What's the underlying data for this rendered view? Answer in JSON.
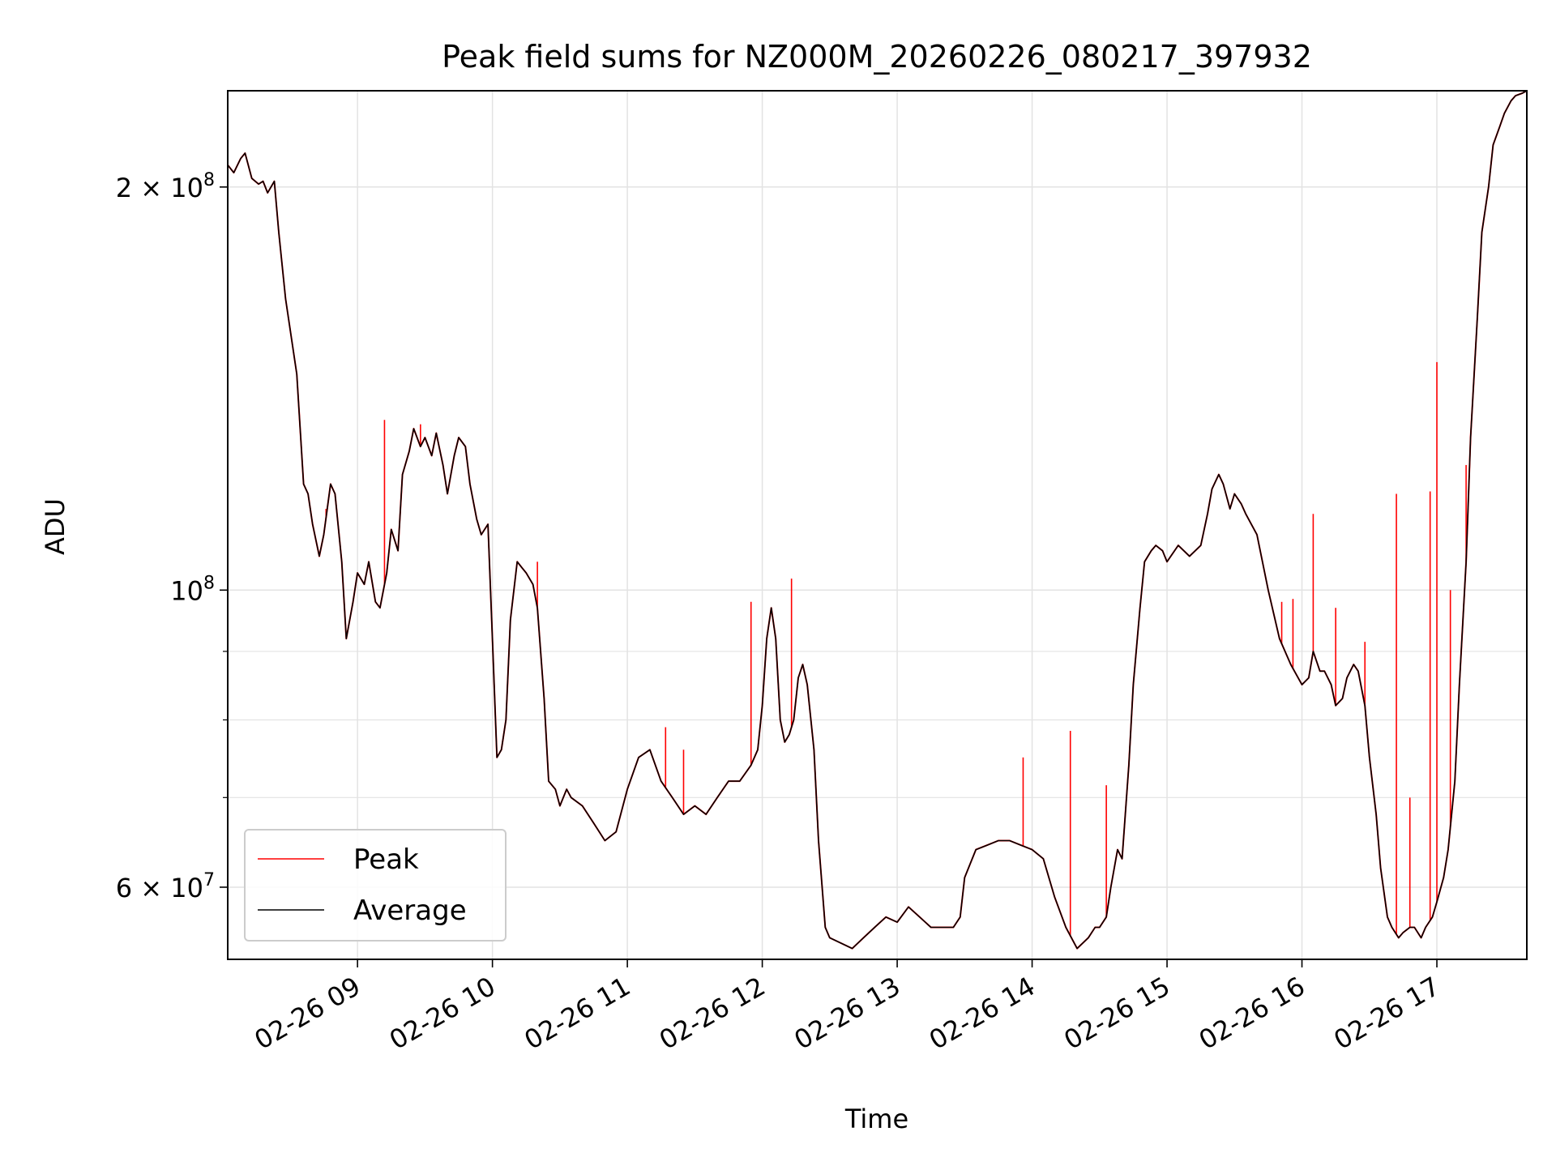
{
  "chart_data": {
    "type": "line",
    "title": "Peak field sums for NZ000M_20260226_080217_397932",
    "xlabel": "Time",
    "ylabel": "ADU",
    "x_is_time": true,
    "xlim": [
      "2026-02-26T08:02:17",
      "2026-02-26T17:40:00"
    ],
    "ylim": [
      53000000,
      236000000
    ],
    "y_scale": "log",
    "grid": true,
    "legend_position": "lower-left",
    "x_ticks": [
      {
        "value": "2026-02-26T09:00",
        "label": "02-26 09"
      },
      {
        "value": "2026-02-26T10:00",
        "label": "02-26 10"
      },
      {
        "value": "2026-02-26T11:00",
        "label": "02-26 11"
      },
      {
        "value": "2026-02-26T12:00",
        "label": "02-26 12"
      },
      {
        "value": "2026-02-26T13:00",
        "label": "02-26 13"
      },
      {
        "value": "2026-02-26T14:00",
        "label": "02-26 14"
      },
      {
        "value": "2026-02-26T15:00",
        "label": "02-26 15"
      },
      {
        "value": "2026-02-26T16:00",
        "label": "02-26 16"
      },
      {
        "value": "2026-02-26T17:00",
        "label": "02-26 17"
      }
    ],
    "y_major_ticks": [
      {
        "value": 60000000,
        "mantissa": "6",
        "exponent": "7"
      },
      {
        "value": 100000000,
        "mantissa": "",
        "exponent": "8"
      },
      {
        "value": 200000000,
        "mantissa": "2",
        "exponent": "8"
      }
    ],
    "y_minor_ticks": [
      70000000,
      80000000,
      90000000
    ],
    "series": [
      {
        "name": "Average",
        "color": "#000000",
        "x": [
          "2026-02-26T08:02",
          "2026-02-26T08:05",
          "2026-02-26T08:08",
          "2026-02-26T08:10",
          "2026-02-26T08:13",
          "2026-02-26T08:16",
          "2026-02-26T08:18",
          "2026-02-26T08:20",
          "2026-02-26T08:23",
          "2026-02-26T08:25",
          "2026-02-26T08:28",
          "2026-02-26T08:33",
          "2026-02-26T08:36",
          "2026-02-26T08:38",
          "2026-02-26T08:40",
          "2026-02-26T08:43",
          "2026-02-26T08:45",
          "2026-02-26T08:48",
          "2026-02-26T08:50",
          "2026-02-26T08:53",
          "2026-02-26T08:55",
          "2026-02-26T08:58",
          "2026-02-26T09:00",
          "2026-02-26T09:03",
          "2026-02-26T09:05",
          "2026-02-26T09:08",
          "2026-02-26T09:10",
          "2026-02-26T09:13",
          "2026-02-26T09:15",
          "2026-02-26T09:18",
          "2026-02-26T09:20",
          "2026-02-26T09:23",
          "2026-02-26T09:25",
          "2026-02-26T09:28",
          "2026-02-26T09:30",
          "2026-02-26T09:33",
          "2026-02-26T09:35",
          "2026-02-26T09:38",
          "2026-02-26T09:40",
          "2026-02-26T09:43",
          "2026-02-26T09:45",
          "2026-02-26T09:48",
          "2026-02-26T09:50",
          "2026-02-26T09:53",
          "2026-02-26T09:55",
          "2026-02-26T09:58",
          "2026-02-26T10:00",
          "2026-02-26T10:02",
          "2026-02-26T10:04",
          "2026-02-26T10:06",
          "2026-02-26T10:08",
          "2026-02-26T10:11",
          "2026-02-26T10:13",
          "2026-02-26T10:15",
          "2026-02-26T10:18",
          "2026-02-26T10:20",
          "2026-02-26T10:23",
          "2026-02-26T10:25",
          "2026-02-26T10:28",
          "2026-02-26T10:30",
          "2026-02-26T10:33",
          "2026-02-26T10:35",
          "2026-02-26T10:40",
          "2026-02-26T10:45",
          "2026-02-26T10:50",
          "2026-02-26T10:55",
          "2026-02-26T11:00",
          "2026-02-26T11:05",
          "2026-02-26T11:10",
          "2026-02-26T11:15",
          "2026-02-26T11:20",
          "2026-02-26T11:25",
          "2026-02-26T11:30",
          "2026-02-26T11:35",
          "2026-02-26T11:40",
          "2026-02-26T11:45",
          "2026-02-26T11:50",
          "2026-02-26T11:55",
          "2026-02-26T11:58",
          "2026-02-26T12:00",
          "2026-02-26T12:02",
          "2026-02-26T12:04",
          "2026-02-26T12:06",
          "2026-02-26T12:08",
          "2026-02-26T12:10",
          "2026-02-26T12:12",
          "2026-02-26T12:14",
          "2026-02-26T12:16",
          "2026-02-26T12:18",
          "2026-02-26T12:20",
          "2026-02-26T12:23",
          "2026-02-26T12:25",
          "2026-02-26T12:28",
          "2026-02-26T12:30",
          "2026-02-26T12:35",
          "2026-02-26T12:40",
          "2026-02-26T12:45",
          "2026-02-26T12:50",
          "2026-02-26T12:55",
          "2026-02-26T13:00",
          "2026-02-26T13:05",
          "2026-02-26T13:10",
          "2026-02-26T13:15",
          "2026-02-26T13:20",
          "2026-02-26T13:25",
          "2026-02-26T13:28",
          "2026-02-26T13:30",
          "2026-02-26T13:35",
          "2026-02-26T13:40",
          "2026-02-26T13:45",
          "2026-02-26T13:50",
          "2026-02-26T13:55",
          "2026-02-26T14:00",
          "2026-02-26T14:05",
          "2026-02-26T14:10",
          "2026-02-26T14:15",
          "2026-02-26T14:20",
          "2026-02-26T14:25",
          "2026-02-26T14:28",
          "2026-02-26T14:30",
          "2026-02-26T14:33",
          "2026-02-26T14:35",
          "2026-02-26T14:38",
          "2026-02-26T14:40",
          "2026-02-26T14:43",
          "2026-02-26T14:45",
          "2026-02-26T14:48",
          "2026-02-26T14:50",
          "2026-02-26T14:53",
          "2026-02-26T14:55",
          "2026-02-26T14:58",
          "2026-02-26T15:00",
          "2026-02-26T15:05",
          "2026-02-26T15:10",
          "2026-02-26T15:15",
          "2026-02-26T15:18",
          "2026-02-26T15:20",
          "2026-02-26T15:23",
          "2026-02-26T15:25",
          "2026-02-26T15:28",
          "2026-02-26T15:30",
          "2026-02-26T15:33",
          "2026-02-26T15:35",
          "2026-02-26T15:40",
          "2026-02-26T15:45",
          "2026-02-26T15:50",
          "2026-02-26T15:55",
          "2026-02-26T16:00",
          "2026-02-26T16:03",
          "2026-02-26T16:05",
          "2026-02-26T16:08",
          "2026-02-26T16:10",
          "2026-02-26T16:13",
          "2026-02-26T16:15",
          "2026-02-26T16:18",
          "2026-02-26T16:20",
          "2026-02-26T16:23",
          "2026-02-26T16:25",
          "2026-02-26T16:28",
          "2026-02-26T16:30",
          "2026-02-26T16:33",
          "2026-02-26T16:35",
          "2026-02-26T16:38",
          "2026-02-26T16:40",
          "2026-02-26T16:43",
          "2026-02-26T16:45",
          "2026-02-26T16:48",
          "2026-02-26T16:50",
          "2026-02-26T16:53",
          "2026-02-26T16:55",
          "2026-02-26T16:58",
          "2026-02-26T17:00",
          "2026-02-26T17:03",
          "2026-02-26T17:05",
          "2026-02-26T17:08",
          "2026-02-26T17:10",
          "2026-02-26T17:13",
          "2026-02-26T17:15",
          "2026-02-26T17:18",
          "2026-02-26T17:20",
          "2026-02-26T17:23",
          "2026-02-26T17:25",
          "2026-02-26T17:28",
          "2026-02-26T17:30",
          "2026-02-26T17:33",
          "2026-02-26T17:35",
          "2026-02-26T17:38",
          "2026-02-26T17:40"
        ],
        "values": [
          208000000,
          205000000,
          210000000,
          212000000,
          203000000,
          201000000,
          202000000,
          198000000,
          202000000,
          185000000,
          165000000,
          145000000,
          120000000,
          118000000,
          112000000,
          106000000,
          110000000,
          120000000,
          118000000,
          105000000,
          92000000,
          98000000,
          103000000,
          101000000,
          105000000,
          98000000,
          97000000,
          103000000,
          111000000,
          107000000,
          122000000,
          127000000,
          132000000,
          128000000,
          130000000,
          126000000,
          131000000,
          124000000,
          118000000,
          126000000,
          130000000,
          128000000,
          120000000,
          113000000,
          110000000,
          112000000,
          92000000,
          75000000,
          76000000,
          80000000,
          95000000,
          105000000,
          104000000,
          103000000,
          101000000,
          97000000,
          83000000,
          72000000,
          71000000,
          69000000,
          71000000,
          70000000,
          69000000,
          67000000,
          65000000,
          66000000,
          71000000,
          75000000,
          76000000,
          72000000,
          70000000,
          68000000,
          69000000,
          68000000,
          70000000,
          72000000,
          72000000,
          74000000,
          76000000,
          82000000,
          92000000,
          97000000,
          92000000,
          80000000,
          77000000,
          78000000,
          80000000,
          86000000,
          88000000,
          85000000,
          76000000,
          65000000,
          56000000,
          55000000,
          54500000,
          54000000,
          55000000,
          56000000,
          57000000,
          56500000,
          58000000,
          57000000,
          56000000,
          56000000,
          56000000,
          57000000,
          61000000,
          64000000,
          64500000,
          65000000,
          65000000,
          64500000,
          64000000,
          63000000,
          59000000,
          56000000,
          54000000,
          55000000,
          56000000,
          56000000,
          57000000,
          60000000,
          64000000,
          63000000,
          74000000,
          85000000,
          97000000,
          105000000,
          107000000,
          108000000,
          107000000,
          105000000,
          108000000,
          106000000,
          108000000,
          114000000,
          119000000,
          122000000,
          120000000,
          115000000,
          118000000,
          116000000,
          114000000,
          110000000,
          100000000,
          92000000,
          88000000,
          85000000,
          86000000,
          90000000,
          87000000,
          87000000,
          85000000,
          82000000,
          83000000,
          86000000,
          88000000,
          87000000,
          82000000,
          75000000,
          68000000,
          62000000,
          57000000,
          56000000,
          55000000,
          55500000,
          56000000,
          56000000,
          55000000,
          56000000,
          57000000,
          58500000,
          61000000,
          64000000,
          72000000,
          85000000,
          105000000,
          130000000,
          160000000,
          185000000,
          200000000,
          215000000,
          222000000,
          227000000,
          232000000,
          234000000,
          235000000,
          236000000
        ]
      },
      {
        "name": "Peak",
        "color": "#ff0000",
        "spikes": [
          {
            "x": "2026-02-26T09:12",
            "value": 134000000
          },
          {
            "x": "2026-02-26T09:28",
            "value": 133000000
          },
          {
            "x": "2026-02-26T08:46",
            "value": 115000000
          },
          {
            "x": "2026-02-26T09:48",
            "value": 128000000
          },
          {
            "x": "2026-02-26T10:20",
            "value": 105000000
          },
          {
            "x": "2026-02-26T11:17",
            "value": 79000000
          },
          {
            "x": "2026-02-26T11:25",
            "value": 76000000
          },
          {
            "x": "2026-02-26T11:55",
            "value": 98000000
          },
          {
            "x": "2026-02-26T12:13",
            "value": 102000000
          },
          {
            "x": "2026-02-26T13:56",
            "value": 75000000
          },
          {
            "x": "2026-02-26T14:17",
            "value": 78500000
          },
          {
            "x": "2026-02-26T14:33",
            "value": 71500000
          },
          {
            "x": "2026-02-26T15:51",
            "value": 98000000
          },
          {
            "x": "2026-02-26T15:56",
            "value": 98500000
          },
          {
            "x": "2026-02-26T16:05",
            "value": 114000000
          },
          {
            "x": "2026-02-26T16:15",
            "value": 97000000
          },
          {
            "x": "2026-02-26T16:28",
            "value": 91500000
          },
          {
            "x": "2026-02-26T16:42",
            "value": 118000000
          },
          {
            "x": "2026-02-26T16:48",
            "value": 70000000
          },
          {
            "x": "2026-02-26T16:57",
            "value": 118500000
          },
          {
            "x": "2026-02-26T17:00",
            "value": 148000000
          },
          {
            "x": "2026-02-26T17:06",
            "value": 100000000
          },
          {
            "x": "2026-02-26T17:13",
            "value": 124000000
          }
        ]
      }
    ]
  }
}
